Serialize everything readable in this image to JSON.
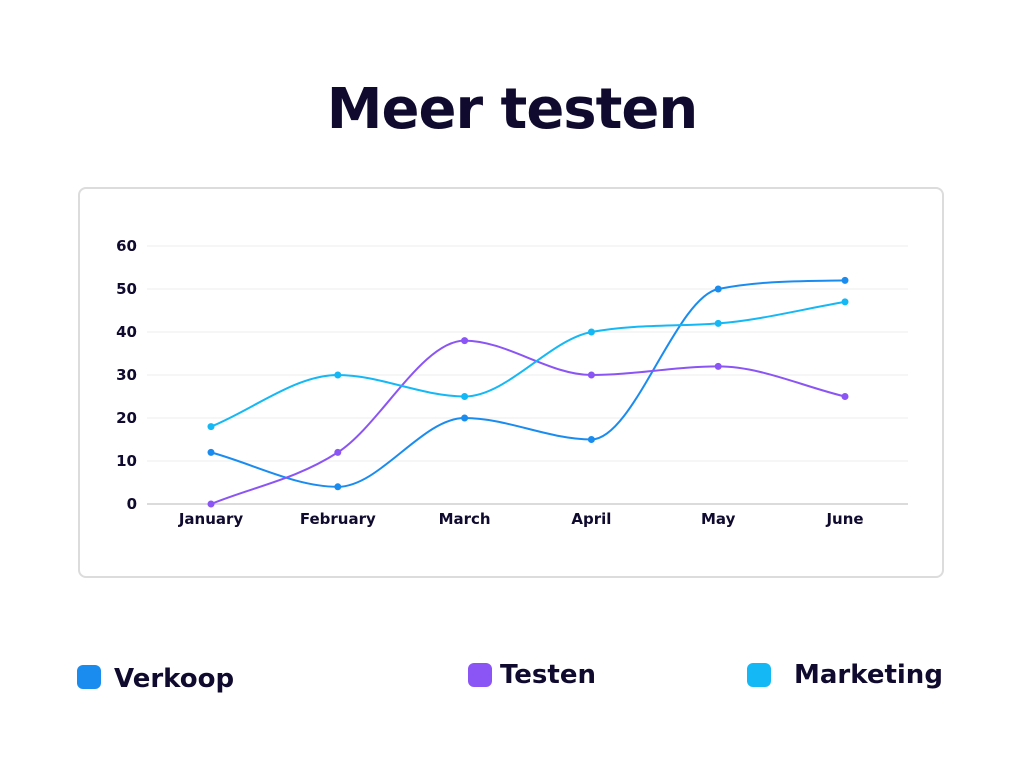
{
  "chart_data": {
    "type": "line",
    "title": "Meer testen",
    "xlabel": "",
    "ylabel": "",
    "categories": [
      "January",
      "February",
      "March",
      "April",
      "May",
      "June"
    ],
    "ylim": [
      0,
      60
    ],
    "yticks": [
      0,
      10,
      20,
      30,
      40,
      50,
      60
    ],
    "grid": true,
    "legend_position": "bottom",
    "series": [
      {
        "name": "Verkoop",
        "color": "#1a8cf0",
        "values": [
          12,
          4,
          20,
          15,
          50,
          52
        ]
      },
      {
        "name": "Testen",
        "color": "#8b55f5",
        "values": [
          0,
          12,
          38,
          30,
          32,
          25
        ]
      },
      {
        "name": "Marketing",
        "color": "#14b8f5",
        "values": [
          18,
          30,
          25,
          40,
          42,
          47
        ]
      }
    ]
  },
  "legend": {
    "verkoop_label": "Verkoop",
    "testen_label": "Testen",
    "marketing_label": "Marketing"
  }
}
